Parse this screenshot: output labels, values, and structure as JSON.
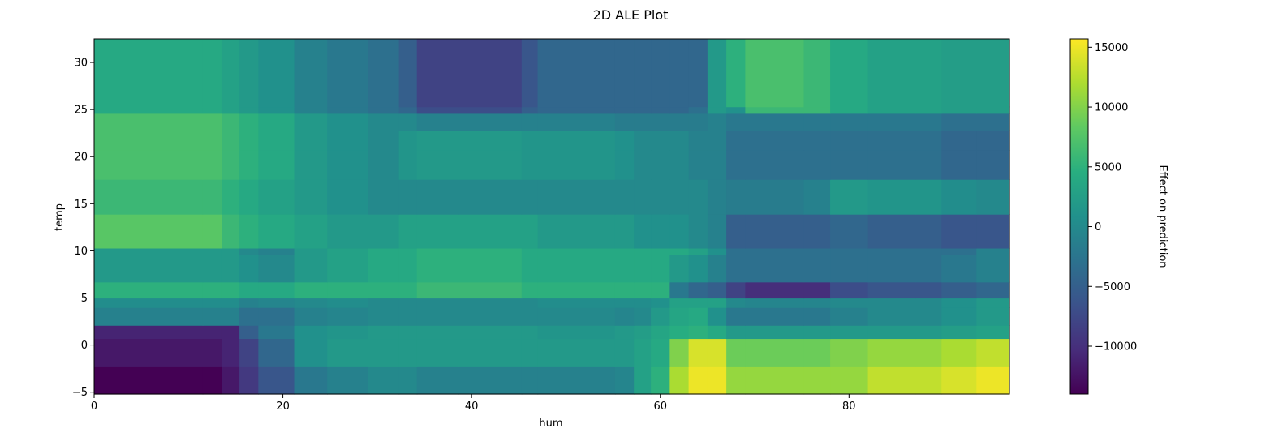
{
  "chart_data": {
    "type": "heatmap",
    "title": "2D ALE Plot",
    "xlabel": "hum",
    "ylabel": "temp",
    "colorbar_label": "Effect on prediction",
    "colormap": "viridis",
    "xlim": [
      0,
      97
    ],
    "ylim": [
      -5.2,
      32.5
    ],
    "x_ticks": [
      0,
      20,
      40,
      60,
      80
    ],
    "y_ticks": [
      -5,
      0,
      5,
      10,
      15,
      20,
      25,
      30
    ],
    "colorbar_range": [
      -14000,
      15700
    ],
    "colorbar_ticks": [
      -10000,
      -5000,
      0,
      5000,
      10000,
      15000
    ],
    "x_edges": [
      0,
      11.5,
      13.5,
      15.4,
      17.4,
      21.2,
      24.7,
      29.0,
      32.3,
      34.2,
      38.6,
      45.3,
      47.0,
      55.2,
      57.2,
      59.0,
      61.0,
      63.0,
      65.0,
      67.0,
      69.0,
      75.2,
      78.0,
      82.0,
      87.0,
      89.8,
      93.5,
      97.0
    ],
    "y_edges": [
      -5.2,
      -2.3,
      0.7,
      2.1,
      4.0,
      5.0,
      6.7,
      9.6,
      10.3,
      13.9,
      17.6,
      20.7,
      22.8,
      24.6,
      25.3,
      32.5
    ],
    "values": [
      [
        -14000,
        -14000,
        -12000,
        -9000,
        -6000,
        -2000,
        -1000,
        0,
        0,
        -1000,
        -1000,
        -1000,
        -1000,
        -500,
        3000,
        5000,
        12000,
        15000,
        15000,
        11000,
        11000,
        11000,
        11000,
        13000,
        13000,
        14000,
        15000
      ],
      [
        -12000,
        -12000,
        -11000,
        -8000,
        -4000,
        1000,
        2000,
        2000,
        2000,
        2000,
        2000,
        2000,
        2000,
        2000,
        3000,
        4000,
        10000,
        14000,
        14000,
        9000,
        9000,
        9000,
        10000,
        11000,
        11000,
        12000,
        13000
      ],
      [
        -11000,
        -11000,
        -11000,
        -5000,
        -2000,
        1000,
        1500,
        2000,
        2000,
        2000,
        2000,
        2000,
        1500,
        2000,
        2500,
        3500,
        4500,
        5000,
        4000,
        2000,
        2000,
        2000,
        2000,
        2000,
        2000,
        2500,
        3000
      ],
      [
        -1000,
        -1000,
        -1000,
        -3000,
        -3000,
        -1000,
        -500,
        0,
        0,
        0,
        0,
        0,
        0,
        -500,
        0,
        2000,
        3500,
        4000,
        1000,
        -2000,
        -2000,
        -2000,
        -1000,
        0,
        0,
        1000,
        2000
      ],
      [
        500,
        500,
        500,
        -1000,
        -500,
        0,
        500,
        0,
        0,
        0,
        0,
        0,
        500,
        500,
        500,
        1000,
        3000,
        3000,
        3000,
        0,
        -500,
        -500,
        0,
        0,
        0,
        1000,
        2000
      ],
      [
        5000,
        5000,
        5000,
        4000,
        4000,
        5000,
        5000,
        5000,
        5000,
        6000,
        6000,
        5000,
        5000,
        5000,
        5000,
        5000,
        -2000,
        -4000,
        -5000,
        -8000,
        -10000,
        -10000,
        -7000,
        -6000,
        -6000,
        -5000,
        -4000
      ],
      [
        2000,
        2000,
        2000,
        1000,
        0,
        2000,
        3000,
        4000,
        4000,
        5000,
        5000,
        4000,
        4000,
        4000,
        4000,
        4000,
        2000,
        1000,
        -1000,
        -3000,
        -3000,
        -3000,
        -3000,
        -3000,
        -3000,
        -2000,
        -1000
      ],
      [
        2000,
        2000,
        2000,
        0,
        -1000,
        2000,
        3000,
        4000,
        4000,
        5000,
        5000,
        4000,
        4000,
        4000,
        4000,
        4000,
        4000,
        3000,
        1000,
        -3000,
        -3000,
        -3000,
        -3000,
        -3000,
        -3000,
        -3000,
        -1000
      ],
      [
        8000,
        8000,
        6000,
        5000,
        4000,
        3000,
        2000,
        2000,
        3000,
        3000,
        3000,
        3000,
        2000,
        2000,
        1000,
        1000,
        1000,
        0,
        -1000,
        -5000,
        -5000,
        -5000,
        -4000,
        -5000,
        -5000,
        -6000,
        -6000
      ],
      [
        6000,
        6000,
        5000,
        4000,
        3000,
        2000,
        1000,
        0,
        0,
        0,
        0,
        0,
        0,
        0,
        0,
        0,
        0,
        0,
        -1000,
        -1500,
        -1500,
        -1000,
        2000,
        1500,
        1500,
        500,
        0
      ],
      [
        7000,
        7000,
        6000,
        5000,
        4000,
        2000,
        1000,
        0,
        1500,
        2000,
        2000,
        1500,
        1500,
        1000,
        0,
        0,
        0,
        -1000,
        -1000,
        -3000,
        -3000,
        -3000,
        -3000,
        -3000,
        -3000,
        -4000,
        -4000
      ],
      [
        7000,
        7000,
        6000,
        5000,
        4000,
        2000,
        1000,
        0,
        1500,
        2000,
        2000,
        1500,
        1500,
        1000,
        0,
        0,
        0,
        -1000,
        -1000,
        -3000,
        -3000,
        -3000,
        -3000,
        -3000,
        -3000,
        -4000,
        -4000
      ],
      [
        7000,
        7000,
        6000,
        5000,
        4000,
        2000,
        1000,
        0,
        0,
        -1000,
        -1000,
        -1000,
        -1000,
        -1500,
        -1500,
        -1500,
        -1500,
        -1500,
        -1000,
        -2000,
        -2000,
        -2000,
        -2000,
        -2000,
        -2000,
        -3000,
        -3000
      ],
      [
        4000,
        4000,
        3000,
        2000,
        1000,
        -1000,
        -2000,
        -3000,
        -4000,
        -7000,
        -7000,
        -5000,
        -4000,
        -4000,
        -4000,
        -4000,
        -4000,
        -3000,
        2000,
        1000,
        6000,
        6000,
        4000,
        3000,
        3000,
        2500,
        2500
      ],
      [
        4000,
        4000,
        3000,
        2000,
        1000,
        -1000,
        -2000,
        -3000,
        -5000,
        -8000,
        -8000,
        -6000,
        -4000,
        -4000,
        -4000,
        -4000,
        -4000,
        -4000,
        2000,
        5000,
        7000,
        6000,
        4000,
        3000,
        3000,
        2500,
        2500
      ]
    ]
  }
}
